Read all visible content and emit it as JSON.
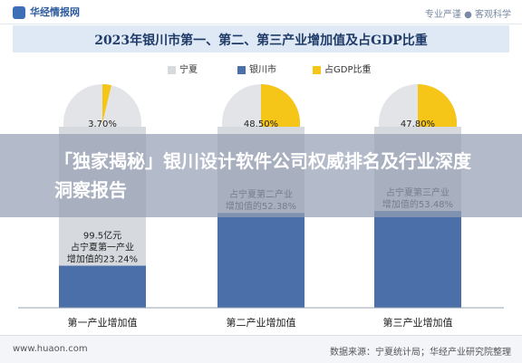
{
  "header": {
    "logo_text": "华经情报网",
    "slogan": "专业严谨 ● 客观科学"
  },
  "chart_data": {
    "type": "bar",
    "title": "2023年银川市第一、第二、第三产业增加值及占GDP比重",
    "legend": [
      "宁夏",
      "银川市",
      "占GDP比重"
    ],
    "categories": [
      "第一产业增加值",
      "第二产业增加值",
      "第三产业增加值"
    ],
    "share_of_gdp_percent": [
      3.7,
      48.5,
      47.8
    ],
    "share_of_gdp_labels": [
      "3.70%",
      "48.50%",
      "47.80%"
    ],
    "bar_share_percent": [
      23.24,
      52.38,
      53.48
    ],
    "bar_annotations": [
      [
        "99.5亿元",
        "占宁夏第一产业",
        "增加值的23.24%"
      ],
      [
        "占宁夏第二产业",
        "增加值的52.38%"
      ],
      [
        "占宁夏第三产业",
        "增加值的53.48%"
      ]
    ],
    "colors": {
      "ningxia": "#d6d9de",
      "yinchuan": "#4b6fa8",
      "share": "#f5c518",
      "pie_rest": "#e2e4e8"
    }
  },
  "overlay": {
    "headline": "「独家揭秘」银川设计软件公司权威排名及行业深度洞察报告"
  },
  "footer": {
    "url": "www.huaon.com",
    "source": "数据来源：宁夏统计局；华经产业研究院整理"
  }
}
